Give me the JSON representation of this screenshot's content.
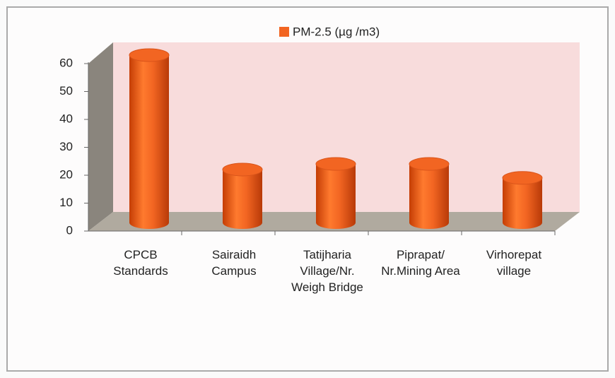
{
  "chart_data": {
    "type": "bar3d",
    "categories": [
      "CPCB Standards",
      "Sairaidh Campus",
      "Tatijharia Village/Nr. Weigh Bridge",
      "Piprapat/ Nr.Mining Area",
      "Virhorepat village"
    ],
    "series": [
      {
        "name": "PM-2.5 (µg /m3)",
        "color": "#f26522",
        "values": [
          60,
          19,
          21,
          21,
          16
        ]
      }
    ],
    "ylim": [
      0,
      60
    ],
    "yticks": [
      0,
      10,
      20,
      30,
      40,
      50,
      60
    ],
    "legend": "top"
  }
}
